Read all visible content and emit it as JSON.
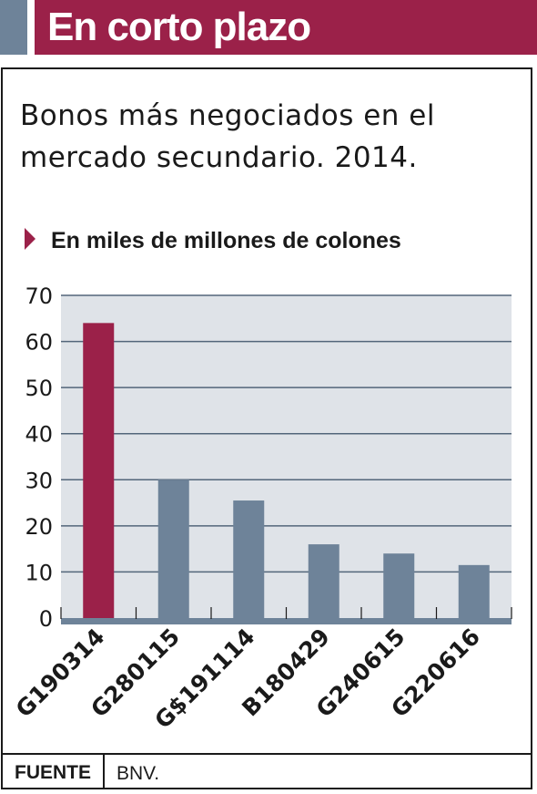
{
  "header": {
    "title": "En corto plazo"
  },
  "subtitle": "Bonos más negociados en el mercado secundario. 2014.",
  "unit_label": "En miles de millones de colones",
  "footer": {
    "source_label": "FUENTE",
    "source_value": "BNV."
  },
  "colors": {
    "highlight": "#9b2149",
    "bar": "#6e8399",
    "plot_background": "#dfe3e8",
    "header_accent": "#6e8399"
  },
  "chart_data": {
    "type": "bar",
    "title": "Bonos más negociados en el mercado secundario. 2014.",
    "subtitle": "En miles de millones de colones",
    "categories": [
      "G190314",
      "G280115",
      "G$191114",
      "B180429",
      "G240615",
      "G220616"
    ],
    "values": [
      64,
      30,
      25.5,
      16,
      14,
      11.5
    ],
    "highlighted_category": "G190314",
    "ylim": [
      0,
      70
    ],
    "yticks": [
      0,
      10,
      20,
      30,
      40,
      50,
      60,
      70
    ],
    "grid": true,
    "xlabel": "",
    "ylabel": ""
  }
}
